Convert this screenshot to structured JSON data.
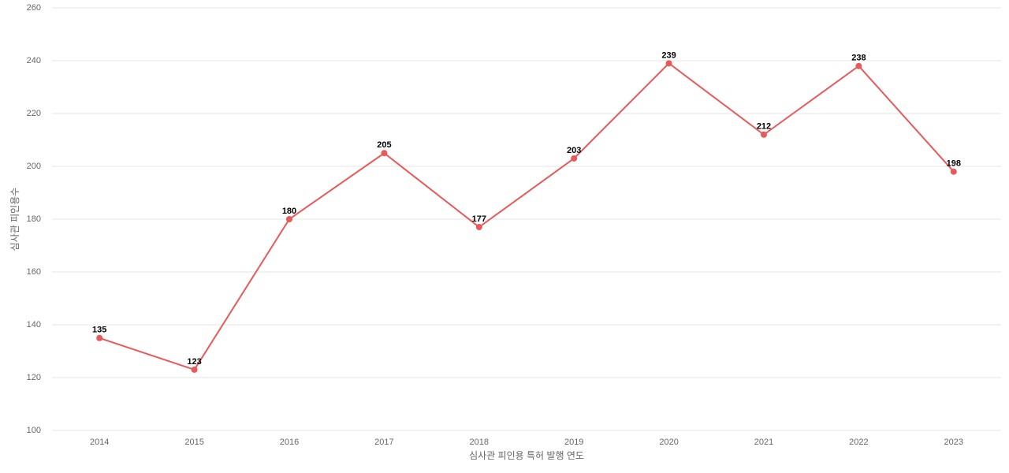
{
  "chart_data": {
    "type": "line",
    "x_label": "심사관 피인용 특허 발행 연도",
    "y_label": "심사관 피인용수",
    "categories": [
      "2014",
      "2015",
      "2016",
      "2017",
      "2018",
      "2019",
      "2020",
      "2021",
      "2022",
      "2023"
    ],
    "values": [
      135,
      123,
      180,
      205,
      177,
      203,
      239,
      212,
      238,
      198
    ],
    "color": "#e85a5a",
    "ylim": [
      100,
      260
    ],
    "yticks": [
      100,
      120,
      140,
      160,
      180,
      200,
      220,
      240,
      260
    ],
    "grid": true
  }
}
